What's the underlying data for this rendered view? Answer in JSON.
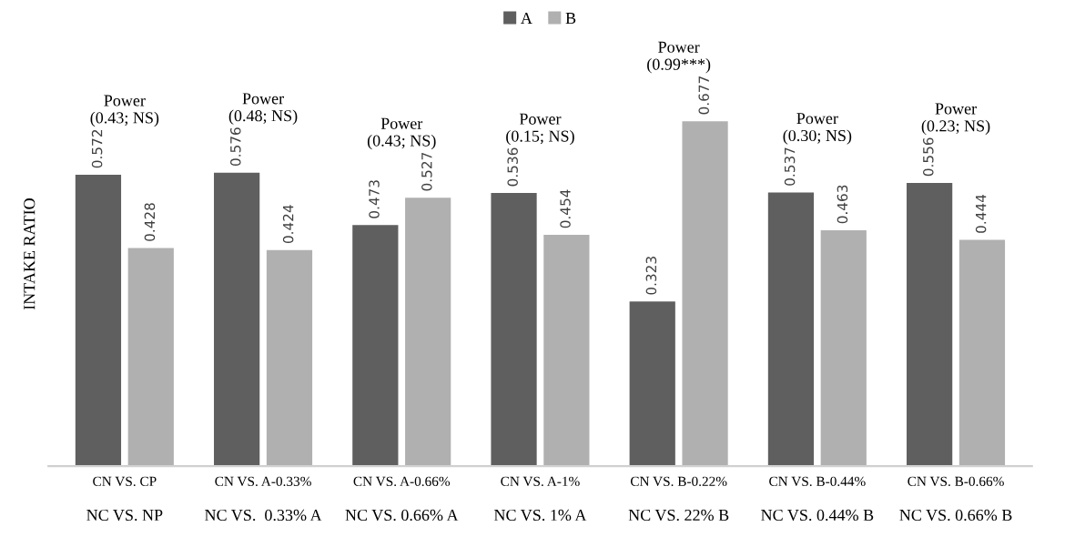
{
  "chart_data": {
    "type": "bar",
    "ylabel": "INTAKE RATIO",
    "categories": [
      "CN VS. CP",
      "CN VS. A-0.33%",
      "CN VS. A-0.66%",
      "CN VS. A-1%",
      "CN VS. B-0.22%",
      "CN VS. B-0.44%",
      "CN VS. B-0.66%"
    ],
    "series": [
      {
        "name": "A",
        "color": "#5f5f5f",
        "values": [
          0.572,
          0.576,
          0.473,
          0.536,
          0.323,
          0.537,
          0.556
        ]
      },
      {
        "name": "B",
        "color": "#b0b0b0",
        "values": [
          0.428,
          0.424,
          0.527,
          0.454,
          0.677,
          0.463,
          0.444
        ]
      }
    ],
    "data_labels": true,
    "legend": "top",
    "grid": false,
    "annotations": [
      "Power\n(0.43; NS)",
      "Power\n(0.48; NS)",
      "Power\n(0.43; NS)",
      "Power\n(0.15; NS)",
      "Power\n(0.99***)",
      "Power\n(0.30; NS)",
      "Power\n(0.23; NS)",
      "NC VS. NP",
      "NC VS.  0.33% A",
      "NC VS. 0.66% A",
      "NC VS. 1% A",
      "NC VS. 22% B",
      "NC VS. 0.44% B",
      "NC VS. 0.66% B"
    ]
  }
}
